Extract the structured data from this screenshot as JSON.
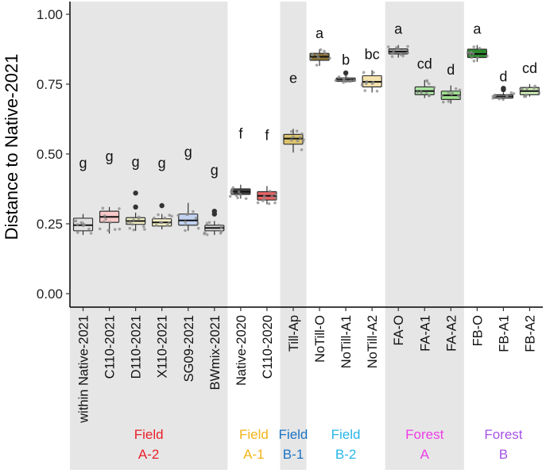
{
  "chart_data": {
    "type": "boxplot",
    "ylabel": "Distance to Native-2021",
    "ylim": [
      0,
      1.0
    ],
    "yticks": [
      "0.00",
      "0.25",
      "0.50",
      "0.75",
      "1.00"
    ],
    "ytick_values": [
      0,
      0.25,
      0.5,
      0.75,
      1.0
    ],
    "categories": [
      {
        "label": "within Native-2021",
        "q1": 0.225,
        "median": 0.245,
        "q3": 0.27,
        "wlo": 0.21,
        "whi": 0.285,
        "outliers": [],
        "letter": "g",
        "fill": "#e0e0e0"
      },
      {
        "label": "C110-2021",
        "q1": 0.255,
        "median": 0.275,
        "q3": 0.295,
        "wlo": 0.215,
        "whi": 0.31,
        "outliers": [],
        "letter": "g",
        "fill": "#f7c9c9"
      },
      {
        "label": "D110-2021",
        "q1": 0.248,
        "median": 0.26,
        "q3": 0.272,
        "wlo": 0.225,
        "whi": 0.29,
        "outliers": [
          0.36,
          0.31
        ],
        "letter": "g",
        "fill": "#f2efc4"
      },
      {
        "label": "X110-2021",
        "q1": 0.242,
        "median": 0.255,
        "q3": 0.268,
        "wlo": 0.23,
        "whi": 0.285,
        "outliers": [
          0.315
        ],
        "letter": "g",
        "fill": "#f4efc4"
      },
      {
        "label": "SG09-2021",
        "q1": 0.245,
        "median": 0.262,
        "q3": 0.285,
        "wlo": 0.225,
        "whi": 0.325,
        "outliers": [],
        "letter": "g",
        "fill": "#c2d3f2"
      },
      {
        "label": "BWmix-2021",
        "q1": 0.225,
        "median": 0.235,
        "q3": 0.245,
        "wlo": 0.21,
        "whi": 0.26,
        "outliers": [
          0.285,
          0.295
        ],
        "letter": "g",
        "fill": "#d8d8d8"
      },
      {
        "label": "Native-2020",
        "q1": 0.355,
        "median": 0.365,
        "q3": 0.375,
        "wlo": 0.34,
        "whi": 0.39,
        "outliers": [],
        "letter": "f",
        "fill": "#444444"
      },
      {
        "label": "C110-2020",
        "q1": 0.335,
        "median": 0.35,
        "q3": 0.365,
        "wlo": 0.32,
        "whi": 0.385,
        "outliers": [],
        "letter": "f",
        "fill": "#e66464"
      },
      {
        "label": "Till-Ap",
        "q1": 0.535,
        "median": 0.555,
        "q3": 0.57,
        "wlo": 0.505,
        "whi": 0.59,
        "outliers": [],
        "letter": "e",
        "fill": "#dcc36e"
      },
      {
        "label": "NoTill-O",
        "q1": 0.835,
        "median": 0.848,
        "q3": 0.86,
        "wlo": 0.815,
        "whi": 0.875,
        "outliers": [],
        "letter": "a",
        "fill": "#8c7336"
      },
      {
        "label": "NoTill-A1",
        "q1": 0.76,
        "median": 0.766,
        "q3": 0.772,
        "wlo": 0.755,
        "whi": 0.78,
        "outliers": [
          0.79
        ],
        "letter": "b",
        "fill": "#dcdcdc"
      },
      {
        "label": "NoTill-A2",
        "q1": 0.74,
        "median": 0.758,
        "q3": 0.78,
        "wlo": 0.72,
        "whi": 0.8,
        "outliers": [],
        "letter": "bc",
        "fill": "#f4e3ad"
      },
      {
        "label": "FA-O",
        "q1": 0.858,
        "median": 0.866,
        "q3": 0.876,
        "wlo": 0.845,
        "whi": 0.89,
        "outliers": [],
        "letter": "a",
        "fill": "#a6a6a6"
      },
      {
        "label": "FA-A1",
        "q1": 0.712,
        "median": 0.725,
        "q3": 0.74,
        "wlo": 0.7,
        "whi": 0.765,
        "outliers": [],
        "letter": "cd",
        "fill": "#aee8a6"
      },
      {
        "label": "FA-A2",
        "q1": 0.695,
        "median": 0.71,
        "q3": 0.725,
        "wlo": 0.68,
        "whi": 0.745,
        "outliers": [],
        "letter": "d",
        "fill": "#9fe08f"
      },
      {
        "label": "FB-O",
        "q1": 0.845,
        "median": 0.858,
        "q3": 0.875,
        "wlo": 0.83,
        "whi": 0.89,
        "outliers": [],
        "letter": "a",
        "fill": "#2d8a2d"
      },
      {
        "label": "FB-A1",
        "q1": 0.7,
        "median": 0.706,
        "q3": 0.712,
        "wlo": 0.695,
        "whi": 0.72,
        "outliers": [
          0.735,
          0.73
        ],
        "letter": "d",
        "fill": "#e0e0e0"
      },
      {
        "label": "FB-A2",
        "q1": 0.712,
        "median": 0.725,
        "q3": 0.738,
        "wlo": 0.705,
        "whi": 0.75,
        "outliers": [],
        "letter": "cd",
        "fill": "#cdeeb8"
      }
    ],
    "groups": [
      {
        "line1": "Field",
        "line2": "A-2",
        "start": 0,
        "end": 5,
        "color": "#e8202a",
        "shaded": true
      },
      {
        "line1": "Field",
        "line2": "A-1",
        "start": 6,
        "end": 7,
        "color": "#f2b419",
        "shaded": false
      },
      {
        "line1": "Field",
        "line2": "B-1",
        "start": 8,
        "end": 8,
        "color": "#1a73c4",
        "shaded": true
      },
      {
        "line1": "Field",
        "line2": "B-2",
        "start": 9,
        "end": 11,
        "color": "#29b6e8",
        "shaded": false
      },
      {
        "line1": "Forest",
        "line2": "A",
        "start": 12,
        "end": 14,
        "color": "#ee3de8",
        "shaded": true
      },
      {
        "line1": "Forest",
        "line2": "B",
        "start": 15,
        "end": 17,
        "color": "#a653e8",
        "shaded": false
      }
    ]
  }
}
